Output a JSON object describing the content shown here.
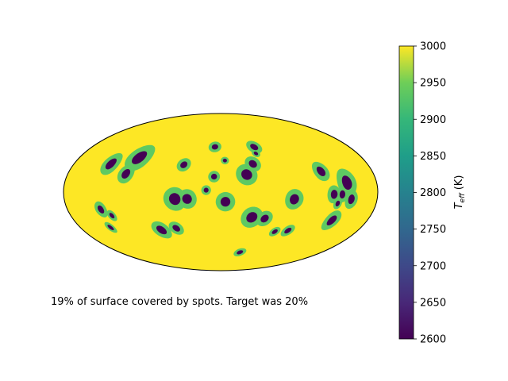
{
  "chart_data": {
    "type": "heatmap",
    "projection": "hammer (mollweide-like ellipse)",
    "caption": "19% of surface covered by spots. Target was 20%",
    "colorbar": {
      "label": "T_eff (K)",
      "range": [
        2600,
        3000
      ],
      "ticks": [
        3000,
        2950,
        2900,
        2850,
        2800,
        2750,
        2700,
        2650,
        2600
      ],
      "colormap": "viridis"
    },
    "levels": {
      "photosphere_K": 3000,
      "penumbra_K": 2900,
      "umbra_K": 2600
    },
    "colors": {
      "photosphere": "#fde725",
      "penumbra": "#5ec962",
      "umbra": "#440154",
      "outline": "#000000"
    },
    "spot_coverage_percent": 19,
    "target_coverage_percent": 20,
    "spots": [
      {
        "lon": -130,
        "lat": 25,
        "r": 10
      },
      {
        "lon": -100,
        "lat": 33,
        "r": 13
      },
      {
        "lon": -105,
        "lat": 17,
        "r": 9
      },
      {
        "lon": -42,
        "lat": 28,
        "r": 7
      },
      {
        "lon": -8,
        "lat": 48,
        "r": 6
      },
      {
        "lon": 5,
        "lat": 33,
        "r": 4
      },
      {
        "lon": -7,
        "lat": 16,
        "r": 6
      },
      {
        "lon": 28,
        "lat": 18,
        "r": 11
      },
      {
        "lon": 37,
        "lat": 29,
        "r": 8
      },
      {
        "lon": 47,
        "lat": 47,
        "r": 7
      },
      {
        "lon": 45,
        "lat": 40,
        "r": 4
      },
      {
        "lon": -15,
        "lat": 2,
        "r": 5
      },
      {
        "lon": -48,
        "lat": -7,
        "r": 12
      },
      {
        "lon": -35,
        "lat": -7,
        "r": 10
      },
      {
        "lon": 5,
        "lat": -10,
        "r": 10
      },
      {
        "lon": 35,
        "lat": -26,
        "r": 11
      },
      {
        "lon": 50,
        "lat": -27,
        "r": 8
      },
      {
        "lon": 78,
        "lat": -7,
        "r": 10
      },
      {
        "lon": 113,
        "lat": 19,
        "r": 9
      },
      {
        "lon": 140,
        "lat": 8,
        "r": 12
      },
      {
        "lon": 123,
        "lat": -2,
        "r": 8
      },
      {
        "lon": 133,
        "lat": -2,
        "r": 7
      },
      {
        "lon": 145,
        "lat": -6,
        "r": 8
      },
      {
        "lon": 129,
        "lat": -10,
        "r": 5
      },
      {
        "lon": 132,
        "lat": -25,
        "r": 9
      },
      {
        "lon": -135,
        "lat": -15,
        "r": 7
      },
      {
        "lon": -125,
        "lat": -21,
        "r": 5
      },
      {
        "lon": -138,
        "lat": -31,
        "r": 5
      },
      {
        "lon": -75,
        "lat": -38,
        "r": 9
      },
      {
        "lon": -55,
        "lat": -37,
        "r": 7
      },
      {
        "lon": 70,
        "lat": -40,
        "r": 5
      },
      {
        "lon": 86,
        "lat": -38,
        "r": 6
      },
      {
        "lon": 40,
        "lat": -65,
        "r": 5
      }
    ]
  }
}
